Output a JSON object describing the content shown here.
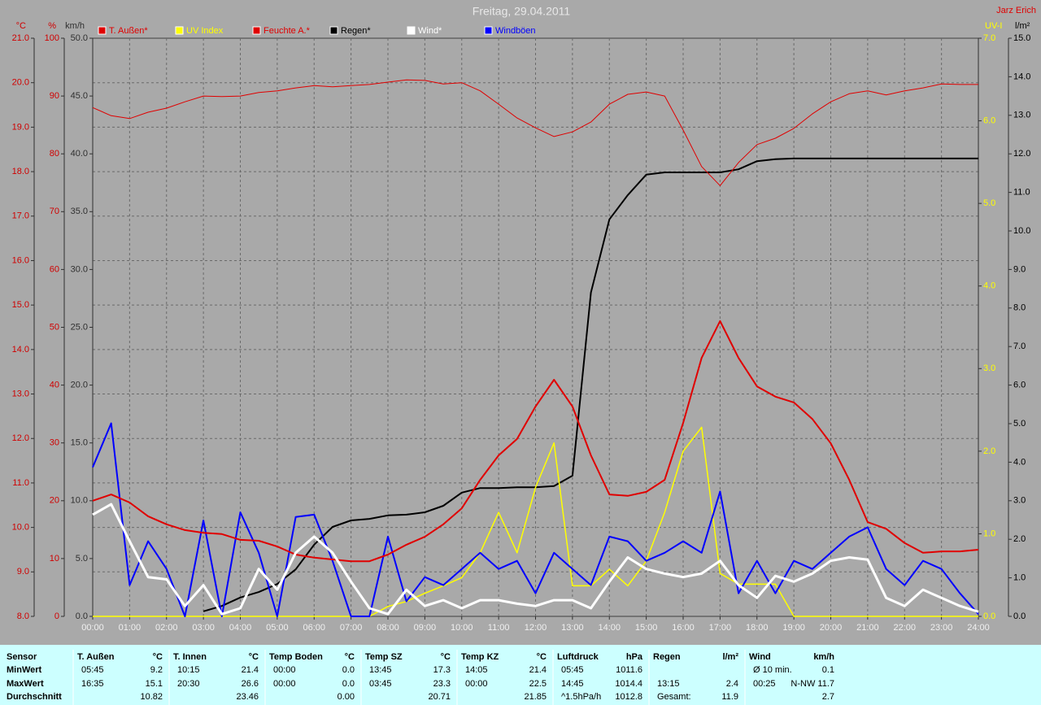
{
  "chart_data": {
    "type": "line",
    "title": "Freitag, 29.04.2011",
    "author": "Jarz Erich",
    "grid": true,
    "xlim": [
      0,
      24
    ],
    "xticks": [
      {
        "value": 0,
        "label": "00:00"
      },
      {
        "value": 1,
        "label": "01:00"
      },
      {
        "value": 2,
        "label": "02:00"
      },
      {
        "value": 3,
        "label": "03:00"
      },
      {
        "value": 4,
        "label": "04:00"
      },
      {
        "value": 5,
        "label": "05:00"
      },
      {
        "value": 6,
        "label": "06:00"
      },
      {
        "value": 7,
        "label": "07:00"
      },
      {
        "value": 8,
        "label": "08:00"
      },
      {
        "value": 9,
        "label": "09:00"
      },
      {
        "value": 10,
        "label": "10:00"
      },
      {
        "value": 11,
        "label": "11:00"
      },
      {
        "value": 12,
        "label": "12:00"
      },
      {
        "value": 13,
        "label": "13:00"
      },
      {
        "value": 14,
        "label": "14:00"
      },
      {
        "value": 15,
        "label": "15:00"
      },
      {
        "value": 16,
        "label": "16:00"
      },
      {
        "value": 17,
        "label": "17:00"
      },
      {
        "value": 18,
        "label": "18:00"
      },
      {
        "value": 19,
        "label": "19:00"
      },
      {
        "value": 20,
        "label": "20:00"
      },
      {
        "value": 21,
        "label": "21:00"
      },
      {
        "value": 22,
        "label": "22:00"
      },
      {
        "value": 23,
        "label": "23:00"
      },
      {
        "value": 24,
        "label": "24:00"
      }
    ],
    "axes": [
      {
        "unit": "°C",
        "color": "#d00000",
        "side": "left",
        "lim": [
          8,
          21
        ],
        "ticks": [
          {
            "value": 8,
            "label": "8.0"
          },
          {
            "value": 9,
            "label": "9.0"
          },
          {
            "value": 10,
            "label": "10.0"
          },
          {
            "value": 11,
            "label": "11.0"
          },
          {
            "value": 12,
            "label": "12.0"
          },
          {
            "value": 13,
            "label": "13.0"
          },
          {
            "value": 14,
            "label": "14.0"
          },
          {
            "value": 15,
            "label": "15.0"
          },
          {
            "value": 16,
            "label": "16.0"
          },
          {
            "value": 17,
            "label": "17.0"
          },
          {
            "value": 18,
            "label": "18.0"
          },
          {
            "value": 19,
            "label": "19.0"
          },
          {
            "value": 20,
            "label": "20.0"
          },
          {
            "value": 21,
            "label": "21.0"
          }
        ]
      },
      {
        "unit": "%",
        "color": "#d00000",
        "side": "left",
        "lim": [
          0,
          100
        ],
        "ticks": [
          0,
          10,
          20,
          30,
          40,
          50,
          60,
          70,
          80,
          90,
          100
        ]
      },
      {
        "unit": "km/h",
        "color": "#303030",
        "side": "left",
        "lim": [
          0,
          50
        ],
        "ticks": [
          {
            "value": 0,
            "label": "0.0"
          },
          {
            "value": 5,
            "label": "5.0"
          },
          {
            "value": 10,
            "label": "10.0"
          },
          {
            "value": 15,
            "label": "15.0"
          },
          {
            "value": 20,
            "label": "20.0"
          },
          {
            "value": 25,
            "label": "25.0"
          },
          {
            "value": 30,
            "label": "30.0"
          },
          {
            "value": 35,
            "label": "35.0"
          },
          {
            "value": 40,
            "label": "40.0"
          },
          {
            "value": 45,
            "label": "45.0"
          },
          {
            "value": 50,
            "label": "50.0"
          }
        ]
      },
      {
        "unit": "UV-I",
        "color": "#ffff00",
        "side": "right",
        "lim": [
          0,
          7
        ],
        "ticks": [
          {
            "value": 0,
            "label": "0.0"
          },
          {
            "value": 1,
            "label": "1.0"
          },
          {
            "value": 2,
            "label": "2.0"
          },
          {
            "value": 3,
            "label": "3.0"
          },
          {
            "value": 4,
            "label": "4.0"
          },
          {
            "value": 5,
            "label": "5.0"
          },
          {
            "value": 6,
            "label": "6.0"
          },
          {
            "value": 7,
            "label": "7.0"
          }
        ]
      },
      {
        "unit": "l/m²",
        "color": "#000000",
        "side": "right",
        "lim": [
          0,
          15
        ],
        "ticks": [
          {
            "value": 0,
            "label": "0.0"
          },
          {
            "value": 1,
            "label": "1.0"
          },
          {
            "value": 2,
            "label": "2.0"
          },
          {
            "value": 3,
            "label": "3.0"
          },
          {
            "value": 4,
            "label": "4.0"
          },
          {
            "value": 5,
            "label": "5.0"
          },
          {
            "value": 6,
            "label": "6.0"
          },
          {
            "value": 7,
            "label": "7.0"
          },
          {
            "value": 8,
            "label": "8.0"
          },
          {
            "value": 9,
            "label": "9.0"
          },
          {
            "value": 10,
            "label": "10.0"
          },
          {
            "value": 11,
            "label": "11.0"
          },
          {
            "value": 12,
            "label": "12.0"
          },
          {
            "value": 13,
            "label": "13.0"
          },
          {
            "value": 14,
            "label": "14.0"
          },
          {
            "value": 15,
            "label": "15.0"
          }
        ]
      }
    ],
    "x": [
      0,
      0.5,
      1,
      1.5,
      2,
      2.5,
      3,
      3.5,
      4,
      4.5,
      5,
      5.5,
      6,
      6.5,
      7,
      7.5,
      8,
      8.5,
      9,
      9.5,
      10,
      10.5,
      11,
      11.5,
      12,
      12.5,
      13,
      13.5,
      14,
      14.5,
      15,
      15.5,
      16,
      16.5,
      17,
      17.5,
      18,
      18.5,
      19,
      19.5,
      20,
      20.5,
      21,
      21.5,
      22,
      22.5,
      23,
      23.5,
      24
    ],
    "series": [
      {
        "name": "T. Außen*",
        "color": "#e00000",
        "width": 2,
        "axis": 0,
        "values": [
          10.6,
          10.74,
          10.56,
          10.25,
          10.07,
          9.94,
          9.88,
          9.85,
          9.72,
          9.7,
          9.57,
          9.39,
          9.32,
          9.28,
          9.24,
          9.24,
          9.39,
          9.61,
          9.79,
          10.07,
          10.43,
          11.07,
          11.62,
          11.99,
          12.72,
          13.32,
          12.72,
          11.62,
          10.74,
          10.71,
          10.8,
          11.07,
          12.35,
          13.81,
          14.64,
          13.81,
          13.17,
          12.94,
          12.81,
          12.44,
          11.89,
          11.07,
          10.12,
          9.97,
          9.65,
          9.43,
          9.46,
          9.46,
          9.5
        ]
      },
      {
        "name": "UV Index",
        "color": "#ffff00",
        "width": 1.5,
        "axis": 3,
        "values": [
          0,
          0,
          0,
          0,
          0,
          0,
          0,
          0,
          0,
          0,
          0,
          0,
          0,
          0,
          0,
          0,
          0.12,
          0.18,
          0.28,
          0.37,
          0.47,
          0.77,
          1.26,
          0.77,
          1.56,
          2.1,
          0.37,
          0.37,
          0.57,
          0.37,
          0.67,
          1.26,
          2.0,
          2.29,
          0.52,
          0.39,
          0.39,
          0.39,
          0,
          0,
          0,
          0,
          0,
          0,
          0,
          0,
          0,
          0,
          0
        ]
      },
      {
        "name": "Feuchte A.*",
        "color": "#e00000",
        "width": 1,
        "axis": 1,
        "values": [
          88.0,
          86.6,
          86.1,
          87.2,
          87.9,
          89.0,
          90.0,
          89.9,
          90.0,
          90.6,
          90.9,
          91.4,
          91.8,
          91.6,
          91.8,
          92.0,
          92.4,
          92.8,
          92.7,
          92.1,
          92.3,
          90.9,
          88.6,
          86.2,
          84.5,
          83.0,
          83.8,
          85.5,
          88.6,
          90.3,
          90.7,
          90.0,
          84.1,
          77.8,
          74.5,
          78.5,
          81.6,
          82.7,
          84.4,
          86.9,
          89.0,
          90.4,
          90.9,
          90.2,
          90.9,
          91.4,
          92.1,
          92.0,
          92.0
        ]
      },
      {
        "name": "Regen*",
        "color": "#000000",
        "width": 2,
        "axis": 4,
        "values": [
          null,
          null,
          null,
          null,
          null,
          null,
          0.13,
          0.27,
          0.49,
          0.63,
          0.84,
          1.22,
          1.86,
          2.32,
          2.49,
          2.53,
          2.62,
          2.64,
          2.7,
          2.87,
          3.21,
          3.33,
          3.33,
          3.35,
          3.35,
          3.38,
          3.65,
          8.4,
          10.3,
          10.93,
          11.46,
          11.52,
          11.52,
          11.52,
          11.52,
          11.6,
          11.81,
          11.86,
          11.88,
          11.88,
          11.88,
          11.88,
          11.88,
          11.88,
          11.88,
          11.88,
          11.88,
          11.88,
          11.88
        ]
      },
      {
        "name": "Wind*",
        "color": "#ffffff",
        "width": 3,
        "axis": 2,
        "values": [
          8.8,
          9.7,
          6.5,
          3.4,
          3.2,
          0.9,
          2.7,
          0.2,
          0.7,
          4.1,
          2.3,
          5.5,
          6.9,
          5.5,
          3.0,
          0.7,
          0.2,
          2.3,
          0.9,
          1.4,
          0.7,
          1.4,
          1.4,
          1.1,
          0.9,
          1.4,
          1.4,
          0.7,
          3.0,
          5.1,
          4.1,
          3.7,
          3.4,
          3.7,
          4.8,
          2.7,
          1.6,
          3.5,
          3.0,
          3.7,
          4.8,
          5.1,
          4.9,
          1.6,
          0.9,
          2.3,
          1.6,
          0.9,
          0.4
        ]
      },
      {
        "name": "Windböen",
        "color": "#0000ff",
        "width": 2,
        "axis": 2,
        "values": [
          12.9,
          16.7,
          2.7,
          6.5,
          4.1,
          0,
          8.3,
          0,
          9.0,
          5.5,
          0,
          8.6,
          8.8,
          4.8,
          0,
          0,
          6.9,
          1.3,
          3.4,
          2.7,
          4.1,
          5.5,
          4.1,
          4.8,
          2.0,
          5.5,
          4.1,
          2.7,
          6.9,
          6.5,
          4.8,
          5.5,
          6.5,
          5.5,
          10.8,
          2.0,
          4.8,
          2.0,
          4.8,
          4.1,
          5.5,
          6.9,
          7.7,
          4.1,
          2.7,
          4.8,
          4.1,
          2.0,
          0.2
        ]
      }
    ]
  },
  "table": {
    "row_header": "Sensor",
    "groups": [
      {
        "name": "T. Außen",
        "unit": "°C"
      },
      {
        "name": "T. Innen",
        "unit": "°C"
      },
      {
        "name": "Temp Boden",
        "unit": "°C"
      },
      {
        "name": "Temp SZ",
        "unit": "°C"
      },
      {
        "name": "Temp KZ",
        "unit": "°C"
      },
      {
        "name": "Luftdruck",
        "unit": "hPa"
      },
      {
        "name": "Regen",
        "unit": "l/m²"
      },
      {
        "name": "Wind",
        "unit": "km/h"
      }
    ],
    "rows": [
      {
        "label": "MinWert",
        "cells": [
          [
            "05:45",
            "9.2"
          ],
          [
            "10:15",
            "21.4"
          ],
          [
            "00:00",
            "0.0"
          ],
          [
            "13:45",
            "17.3"
          ],
          [
            "14:05",
            "21.4"
          ],
          [
            "05:45",
            "1011.6"
          ],
          null,
          [
            "Ø 10 min.",
            "0.1"
          ]
        ]
      },
      {
        "label": "MaxWert",
        "cells": [
          [
            "16:35",
            "15.1"
          ],
          [
            "20:30",
            "26.6"
          ],
          [
            "00:00",
            "0.0"
          ],
          [
            "03:45",
            "23.3"
          ],
          [
            "00:00",
            "22.5"
          ],
          [
            "14:45",
            "1014.4"
          ],
          [
            "13:15",
            "2.4"
          ],
          [
            "00:25",
            "N-NW 11.7"
          ]
        ]
      },
      {
        "label": "Durchschnitt",
        "cells": [
          [
            null,
            "10.82"
          ],
          [
            null,
            "23.46"
          ],
          [
            null,
            "0.00"
          ],
          [
            null,
            "20.71"
          ],
          [
            null,
            "21.85"
          ],
          [
            "^1.5hPa/h",
            "1012.8"
          ],
          [
            "Gesamt:",
            "11.9"
          ],
          [
            null,
            "2.7"
          ]
        ]
      }
    ]
  }
}
